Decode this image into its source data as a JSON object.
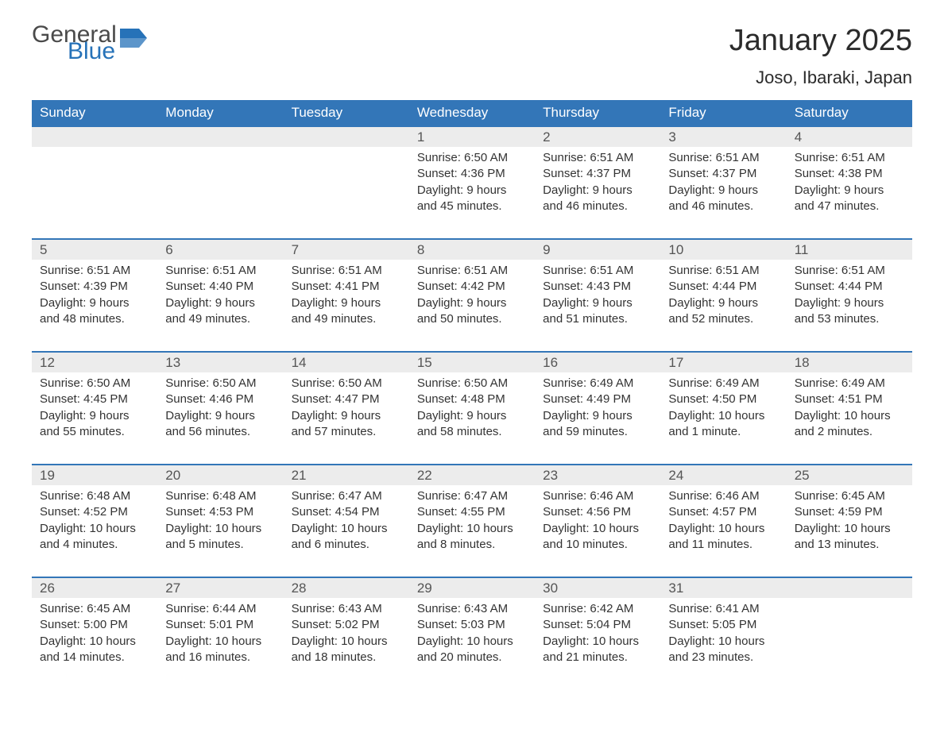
{
  "logo": {
    "word1": "General",
    "word2": "Blue",
    "word1_color": "#4a4a4a",
    "word2_color": "#2672b8",
    "icon_fill": "#2672b8"
  },
  "title": "January 2025",
  "location": "Joso, Ibaraki, Japan",
  "colors": {
    "header_bg": "#3376b8",
    "header_text": "#ffffff",
    "daynum_bg": "#ececec",
    "daynum_text": "#555555",
    "body_text": "#333333",
    "row_border": "#3376b8",
    "page_bg": "#ffffff"
  },
  "typography": {
    "title_fontsize": 38,
    "location_fontsize": 22,
    "dow_fontsize": 17,
    "daynum_fontsize": 17,
    "body_fontsize": 15,
    "font_family": "Arial, Helvetica, sans-serif"
  },
  "dow": [
    "Sunday",
    "Monday",
    "Tuesday",
    "Wednesday",
    "Thursday",
    "Friday",
    "Saturday"
  ],
  "weeks": [
    [
      null,
      null,
      null,
      {
        "n": "1",
        "sunrise": "Sunrise: 6:50 AM",
        "sunset": "Sunset: 4:36 PM",
        "d1": "Daylight: 9 hours",
        "d2": "and 45 minutes."
      },
      {
        "n": "2",
        "sunrise": "Sunrise: 6:51 AM",
        "sunset": "Sunset: 4:37 PM",
        "d1": "Daylight: 9 hours",
        "d2": "and 46 minutes."
      },
      {
        "n": "3",
        "sunrise": "Sunrise: 6:51 AM",
        "sunset": "Sunset: 4:37 PM",
        "d1": "Daylight: 9 hours",
        "d2": "and 46 minutes."
      },
      {
        "n": "4",
        "sunrise": "Sunrise: 6:51 AM",
        "sunset": "Sunset: 4:38 PM",
        "d1": "Daylight: 9 hours",
        "d2": "and 47 minutes."
      }
    ],
    [
      {
        "n": "5",
        "sunrise": "Sunrise: 6:51 AM",
        "sunset": "Sunset: 4:39 PM",
        "d1": "Daylight: 9 hours",
        "d2": "and 48 minutes."
      },
      {
        "n": "6",
        "sunrise": "Sunrise: 6:51 AM",
        "sunset": "Sunset: 4:40 PM",
        "d1": "Daylight: 9 hours",
        "d2": "and 49 minutes."
      },
      {
        "n": "7",
        "sunrise": "Sunrise: 6:51 AM",
        "sunset": "Sunset: 4:41 PM",
        "d1": "Daylight: 9 hours",
        "d2": "and 49 minutes."
      },
      {
        "n": "8",
        "sunrise": "Sunrise: 6:51 AM",
        "sunset": "Sunset: 4:42 PM",
        "d1": "Daylight: 9 hours",
        "d2": "and 50 minutes."
      },
      {
        "n": "9",
        "sunrise": "Sunrise: 6:51 AM",
        "sunset": "Sunset: 4:43 PM",
        "d1": "Daylight: 9 hours",
        "d2": "and 51 minutes."
      },
      {
        "n": "10",
        "sunrise": "Sunrise: 6:51 AM",
        "sunset": "Sunset: 4:44 PM",
        "d1": "Daylight: 9 hours",
        "d2": "and 52 minutes."
      },
      {
        "n": "11",
        "sunrise": "Sunrise: 6:51 AM",
        "sunset": "Sunset: 4:44 PM",
        "d1": "Daylight: 9 hours",
        "d2": "and 53 minutes."
      }
    ],
    [
      {
        "n": "12",
        "sunrise": "Sunrise: 6:50 AM",
        "sunset": "Sunset: 4:45 PM",
        "d1": "Daylight: 9 hours",
        "d2": "and 55 minutes."
      },
      {
        "n": "13",
        "sunrise": "Sunrise: 6:50 AM",
        "sunset": "Sunset: 4:46 PM",
        "d1": "Daylight: 9 hours",
        "d2": "and 56 minutes."
      },
      {
        "n": "14",
        "sunrise": "Sunrise: 6:50 AM",
        "sunset": "Sunset: 4:47 PM",
        "d1": "Daylight: 9 hours",
        "d2": "and 57 minutes."
      },
      {
        "n": "15",
        "sunrise": "Sunrise: 6:50 AM",
        "sunset": "Sunset: 4:48 PM",
        "d1": "Daylight: 9 hours",
        "d2": "and 58 minutes."
      },
      {
        "n": "16",
        "sunrise": "Sunrise: 6:49 AM",
        "sunset": "Sunset: 4:49 PM",
        "d1": "Daylight: 9 hours",
        "d2": "and 59 minutes."
      },
      {
        "n": "17",
        "sunrise": "Sunrise: 6:49 AM",
        "sunset": "Sunset: 4:50 PM",
        "d1": "Daylight: 10 hours",
        "d2": "and 1 minute."
      },
      {
        "n": "18",
        "sunrise": "Sunrise: 6:49 AM",
        "sunset": "Sunset: 4:51 PM",
        "d1": "Daylight: 10 hours",
        "d2": "and 2 minutes."
      }
    ],
    [
      {
        "n": "19",
        "sunrise": "Sunrise: 6:48 AM",
        "sunset": "Sunset: 4:52 PM",
        "d1": "Daylight: 10 hours",
        "d2": "and 4 minutes."
      },
      {
        "n": "20",
        "sunrise": "Sunrise: 6:48 AM",
        "sunset": "Sunset: 4:53 PM",
        "d1": "Daylight: 10 hours",
        "d2": "and 5 minutes."
      },
      {
        "n": "21",
        "sunrise": "Sunrise: 6:47 AM",
        "sunset": "Sunset: 4:54 PM",
        "d1": "Daylight: 10 hours",
        "d2": "and 6 minutes."
      },
      {
        "n": "22",
        "sunrise": "Sunrise: 6:47 AM",
        "sunset": "Sunset: 4:55 PM",
        "d1": "Daylight: 10 hours",
        "d2": "and 8 minutes."
      },
      {
        "n": "23",
        "sunrise": "Sunrise: 6:46 AM",
        "sunset": "Sunset: 4:56 PM",
        "d1": "Daylight: 10 hours",
        "d2": "and 10 minutes."
      },
      {
        "n": "24",
        "sunrise": "Sunrise: 6:46 AM",
        "sunset": "Sunset: 4:57 PM",
        "d1": "Daylight: 10 hours",
        "d2": "and 11 minutes."
      },
      {
        "n": "25",
        "sunrise": "Sunrise: 6:45 AM",
        "sunset": "Sunset: 4:59 PM",
        "d1": "Daylight: 10 hours",
        "d2": "and 13 minutes."
      }
    ],
    [
      {
        "n": "26",
        "sunrise": "Sunrise: 6:45 AM",
        "sunset": "Sunset: 5:00 PM",
        "d1": "Daylight: 10 hours",
        "d2": "and 14 minutes."
      },
      {
        "n": "27",
        "sunrise": "Sunrise: 6:44 AM",
        "sunset": "Sunset: 5:01 PM",
        "d1": "Daylight: 10 hours",
        "d2": "and 16 minutes."
      },
      {
        "n": "28",
        "sunrise": "Sunrise: 6:43 AM",
        "sunset": "Sunset: 5:02 PM",
        "d1": "Daylight: 10 hours",
        "d2": "and 18 minutes."
      },
      {
        "n": "29",
        "sunrise": "Sunrise: 6:43 AM",
        "sunset": "Sunset: 5:03 PM",
        "d1": "Daylight: 10 hours",
        "d2": "and 20 minutes."
      },
      {
        "n": "30",
        "sunrise": "Sunrise: 6:42 AM",
        "sunset": "Sunset: 5:04 PM",
        "d1": "Daylight: 10 hours",
        "d2": "and 21 minutes."
      },
      {
        "n": "31",
        "sunrise": "Sunrise: 6:41 AM",
        "sunset": "Sunset: 5:05 PM",
        "d1": "Daylight: 10 hours",
        "d2": "and 23 minutes."
      },
      null
    ]
  ]
}
